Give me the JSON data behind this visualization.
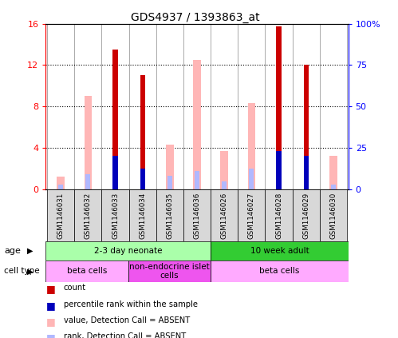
{
  "title": "GDS4937 / 1393863_at",
  "samples": [
    "GSM1146031",
    "GSM1146032",
    "GSM1146033",
    "GSM1146034",
    "GSM1146035",
    "GSM1146036",
    "GSM1146026",
    "GSM1146027",
    "GSM1146028",
    "GSM1146029",
    "GSM1146030"
  ],
  "count_values": [
    0,
    0,
    13.5,
    11.0,
    0,
    0,
    0,
    0,
    15.7,
    12.0,
    0
  ],
  "percentile_rank_raw": [
    0,
    0,
    20,
    12.5,
    0,
    0,
    0,
    0,
    23,
    20,
    0
  ],
  "absent_value": [
    1.2,
    9.0,
    0,
    0,
    4.3,
    12.5,
    3.7,
    8.3,
    0,
    0,
    3.2
  ],
  "absent_rank_raw": [
    3,
    9,
    0,
    0,
    8,
    11,
    5,
    12.5,
    0,
    0,
    3
  ],
  "ylim_left": [
    0,
    16
  ],
  "ylim_right": [
    0,
    100
  ],
  "yticks_left": [
    0,
    4,
    8,
    12,
    16
  ],
  "ytick_labels_left": [
    "0",
    "4",
    "8",
    "12",
    "16"
  ],
  "yticks_right": [
    0,
    25,
    50,
    75,
    100
  ],
  "ytick_labels_right": [
    "0",
    "25",
    "50",
    "75",
    "100%"
  ],
  "count_color": "#cc0000",
  "percentile_color": "#0000bb",
  "absent_value_color": "#ffb6b6",
  "absent_rank_color": "#b0b8ff",
  "age_groups": [
    {
      "label": "2-3 day neonate",
      "start": 0,
      "end": 6,
      "color": "#aaffaa"
    },
    {
      "label": "10 week adult",
      "start": 6,
      "end": 11,
      "color": "#33cc33"
    }
  ],
  "cell_type_groups": [
    {
      "label": "beta cells",
      "start": 0,
      "end": 3,
      "color": "#ffaaff"
    },
    {
      "label": "non-endocrine islet\ncells",
      "start": 3,
      "end": 6,
      "color": "#ee55ee"
    },
    {
      "label": "beta cells",
      "start": 6,
      "end": 11,
      "color": "#ffaaff"
    }
  ],
  "legend_items": [
    {
      "color": "#cc0000",
      "label": "count"
    },
    {
      "color": "#0000bb",
      "label": "percentile rank within the sample"
    },
    {
      "color": "#ffb6b6",
      "label": "value, Detection Call = ABSENT"
    },
    {
      "color": "#b0b8ff",
      "label": "rank, Detection Call = ABSENT"
    }
  ],
  "plot_bg_color": "#ffffff",
  "title_fontsize": 10,
  "xticklabel_bg": "#d8d8d8"
}
